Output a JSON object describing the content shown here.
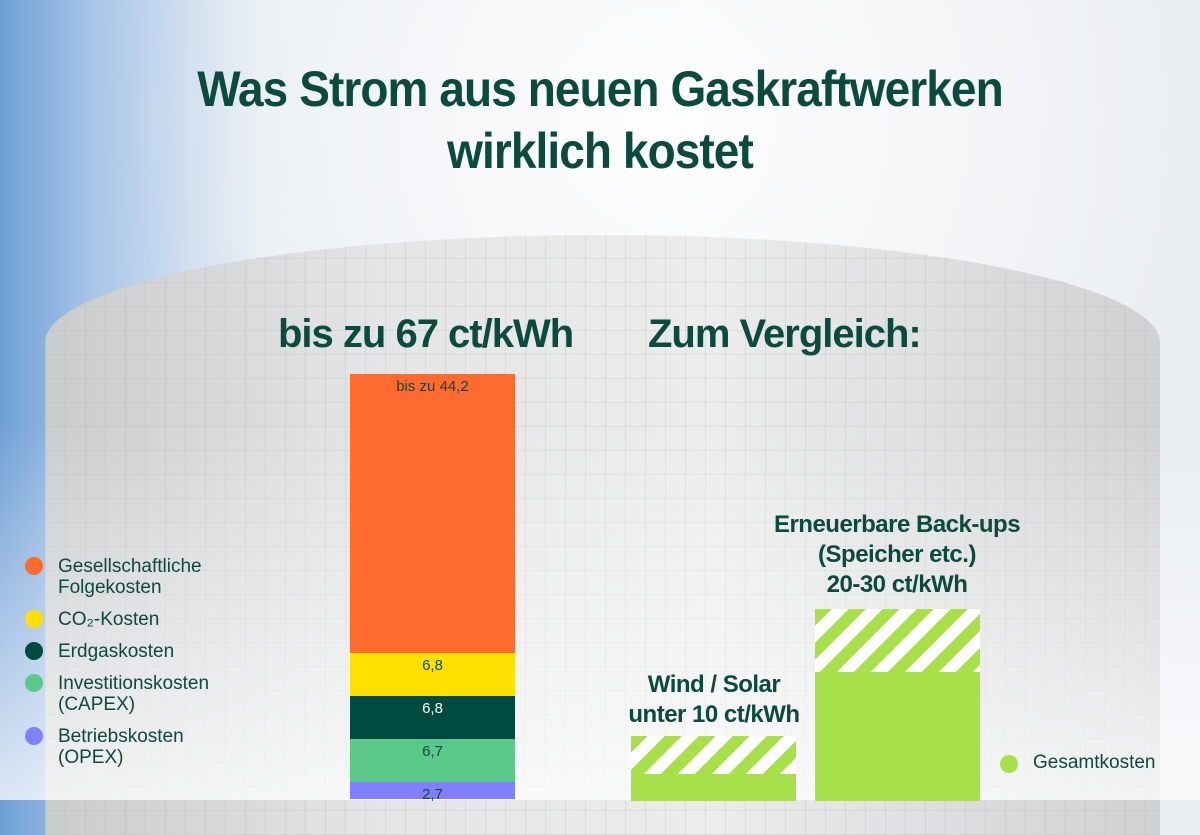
{
  "title_line1": "Was Strom aus neuen Gaskraftwerken",
  "title_line2": "wirklich kostet",
  "gas_heading": "bis zu 67 ct/kWh",
  "compare_heading": "Zum Vergleich:",
  "colors": {
    "text": "#0b4a3e",
    "total": "#a8e04a"
  },
  "chart_data": {
    "type": "bar",
    "unit": "ct/kWh",
    "stacked_bar": {
      "segments": [
        {
          "name": "Betriebskosten (OPEX)",
          "value": 2.7,
          "label": "2,7",
          "color": "#8080ff"
        },
        {
          "name": "Investitionskosten (CAPEX)",
          "value": 6.7,
          "label": "6,7",
          "color": "#5ac98a"
        },
        {
          "name": "Erdgaskosten",
          "value": 6.8,
          "label": "6,8",
          "color": "#004a3f"
        },
        {
          "name": "CO₂-Kosten",
          "value": 6.8,
          "label": "6,8",
          "color": "#ffe000"
        },
        {
          "name": "Gesellschaftliche Folgekosten",
          "value": 44.2,
          "label": "bis zu 44,2",
          "color": "#ff6a2e"
        }
      ]
    },
    "comparison_bars": [
      {
        "label_line1": "Wind / Solar",
        "label_line2": "unter 10 ct/kWh",
        "low": 4,
        "high": 10
      },
      {
        "label_line1": "Erneuerbare Back-ups",
        "label_line2": "(Speicher etc.)",
        "label_line3": "20-30 ct/kWh",
        "low": 20,
        "high": 30
      }
    ],
    "legend": [
      {
        "line1": "Gesellschaftliche",
        "line2": "Folgekosten",
        "color": "#ff6a2e"
      },
      {
        "line1": "CO₂-Kosten",
        "line2": "",
        "color": "#ffe000"
      },
      {
        "line1": "Erdgaskosten",
        "line2": "",
        "color": "#004a3f"
      },
      {
        "line1": "Investitionskosten",
        "line2": "(CAPEX)",
        "color": "#5ac98a"
      },
      {
        "line1": "Betriebskosten",
        "line2": "(OPEX)",
        "color": "#8080ff"
      }
    ],
    "total_legend": "Gesamtkosten"
  }
}
